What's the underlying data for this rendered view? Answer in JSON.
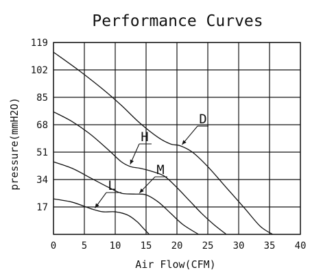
{
  "chart_data": {
    "type": "line",
    "title": "Performance Curves",
    "xlabel": "Air Flow(CFM)",
    "ylabel": "pressure(mmH2O)",
    "xlim": [
      0,
      40
    ],
    "ylim": [
      0,
      119
    ],
    "x_ticks": [
      "0",
      "5",
      "10",
      "15",
      "20",
      "25",
      "30",
      "35",
      "40"
    ],
    "y_ticks": [
      "17",
      "34",
      "51",
      "68",
      "85",
      "102",
      "119"
    ],
    "grid": true,
    "series": [
      {
        "name": "D",
        "x": [
          0,
          4,
          8,
          11,
          14,
          17,
          19,
          20.5,
          22.5,
          25,
          28,
          31,
          33.5,
          35.5
        ],
        "y": [
          113,
          102,
          90,
          80,
          69,
          60,
          56,
          55,
          51,
          42,
          29,
          16,
          5,
          0
        ]
      },
      {
        "name": "H",
        "x": [
          0,
          3,
          6,
          9,
          11,
          12.5,
          14,
          16,
          18,
          20,
          22,
          24,
          26,
          28
        ],
        "y": [
          76,
          70,
          62,
          52,
          45,
          42,
          41,
          39,
          36,
          29,
          21,
          13,
          6,
          0
        ]
      },
      {
        "name": "M",
        "x": [
          0,
          3,
          6,
          9,
          11,
          13,
          15,
          17,
          19,
          21,
          23.5
        ],
        "y": [
          45,
          41,
          35,
          29,
          25.5,
          25,
          24.5,
          20,
          13,
          6,
          0
        ]
      },
      {
        "name": "L",
        "x": [
          0,
          3,
          6,
          8,
          10,
          12,
          13.5,
          14.5,
          15.5
        ],
        "y": [
          22,
          20,
          16,
          14,
          14,
          12,
          8,
          4,
          0
        ]
      }
    ]
  }
}
